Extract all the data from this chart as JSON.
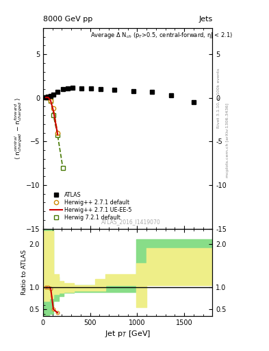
{
  "title_top": "8000 GeV pp",
  "title_right": "Jets",
  "annotation": "Average Δ N$_{ch}$ (p$_{T}$>0.5, central-forward, η| < 2.1)",
  "watermark": "ATLAS_2016_I1419070",
  "right_label_top": "Rivet 3.1.10, ≥ 100k events",
  "right_label_bot": "mcplots.cern.ch [arXiv:1306.3436]",
  "xlabel": "Jet p$_{T}$ [GeV]",
  "ylabel": "⟨ n$^{central}_{charged}$ − n$^{forward}_{charged}$ ⟩",
  "ylabel_ratio": "Ratio to ATLAS",
  "ylim_main": [
    -15,
    8
  ],
  "ylim_ratio": [
    0.35,
    2.35
  ],
  "xlim": [
    0,
    1800
  ],
  "atlas_x": [
    30,
    55,
    80,
    110,
    155,
    210,
    260,
    310,
    410,
    510,
    610,
    760,
    960,
    1160,
    1360,
    1600
  ],
  "atlas_y": [
    0.05,
    0.1,
    0.2,
    0.35,
    0.7,
    1.0,
    1.1,
    1.15,
    1.1,
    1.05,
    1.0,
    0.9,
    0.75,
    0.65,
    0.3,
    -0.5
  ],
  "herwig271_default_x": [
    30,
    55,
    80,
    110,
    155
  ],
  "herwig271_default_y": [
    0.05,
    0.05,
    -0.3,
    -1.2,
    -4.0
  ],
  "herwig271_uee5_x": [
    30,
    55,
    80,
    110,
    155
  ],
  "herwig271_uee5_y": [
    0.05,
    0.05,
    -0.3,
    -1.5,
    -4.2
  ],
  "herwig721_default_x": [
    30,
    55,
    80,
    110,
    155,
    210
  ],
  "herwig721_default_y": [
    0.05,
    0.05,
    -0.3,
    -2.0,
    -4.3,
    -8.0
  ],
  "color_atlas": "#000000",
  "color_herwig271_default": "#cc8800",
  "color_herwig271_uee5": "#cc0000",
  "color_herwig721_default": "#447700",
  "color_band_yellow": "#eeee88",
  "color_band_green": "#88dd88",
  "yticks_main": [
    -15,
    -10,
    -5,
    0,
    5
  ],
  "yticks_ratio": [
    0.5,
    1.0,
    2.0
  ],
  "xticks": [
    0,
    500,
    1000,
    1500
  ]
}
